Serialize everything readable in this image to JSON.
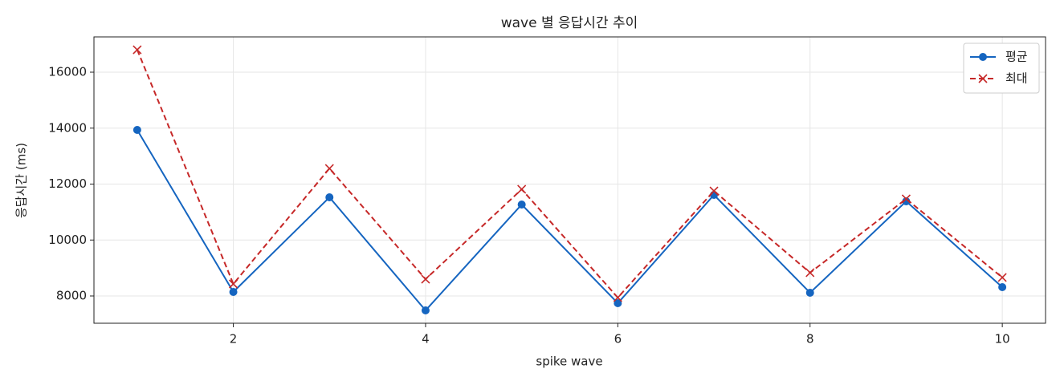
{
  "chart_data": {
    "type": "line",
    "title": "wave 별 응답시간 추이",
    "xlabel": "spike wave",
    "ylabel": "응답시간 (ms)",
    "x": [
      1,
      2,
      3,
      4,
      5,
      6,
      7,
      8,
      9,
      10
    ],
    "series": [
      {
        "name": "평균",
        "color": "#1565c0",
        "marker": "o",
        "linestyle": "solid",
        "values": [
          13935,
          8143,
          11527,
          7484,
          11269,
          7742,
          11613,
          8115,
          11384,
          8315
        ]
      },
      {
        "name": "최대",
        "color": "#c62828",
        "marker": "x",
        "linestyle": "dashed",
        "values": [
          16803,
          8430,
          12559,
          8602,
          11814,
          7943,
          11756,
          8832,
          11470,
          8660
        ]
      }
    ],
    "xlim": [
      0.55,
      10.45
    ],
    "xticks": [
      2,
      4,
      6,
      8,
      10
    ],
    "ylim": [
      7025,
      17262
    ],
    "yticks": [
      8000,
      10000,
      12000,
      14000,
      16000
    ],
    "grid": true,
    "legend": "upper right"
  }
}
